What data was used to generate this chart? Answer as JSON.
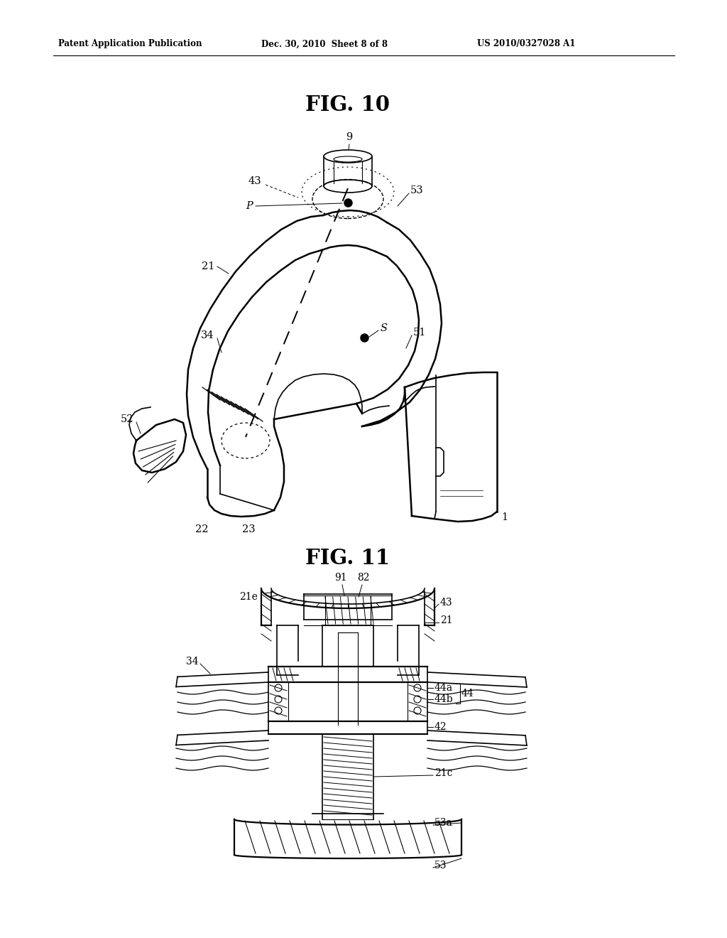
{
  "page_width": 10.24,
  "page_height": 13.2,
  "bg_color": "#ffffff",
  "header_text": "Patent Application Publication",
  "header_date": "Dec. 30, 2010  Sheet 8 of 8",
  "header_patent": "US 2010/0327028 A1",
  "fig10_title": "FIG. 10",
  "fig11_title": "FIG. 11",
  "line_color": "#000000",
  "text_color": "#000000"
}
